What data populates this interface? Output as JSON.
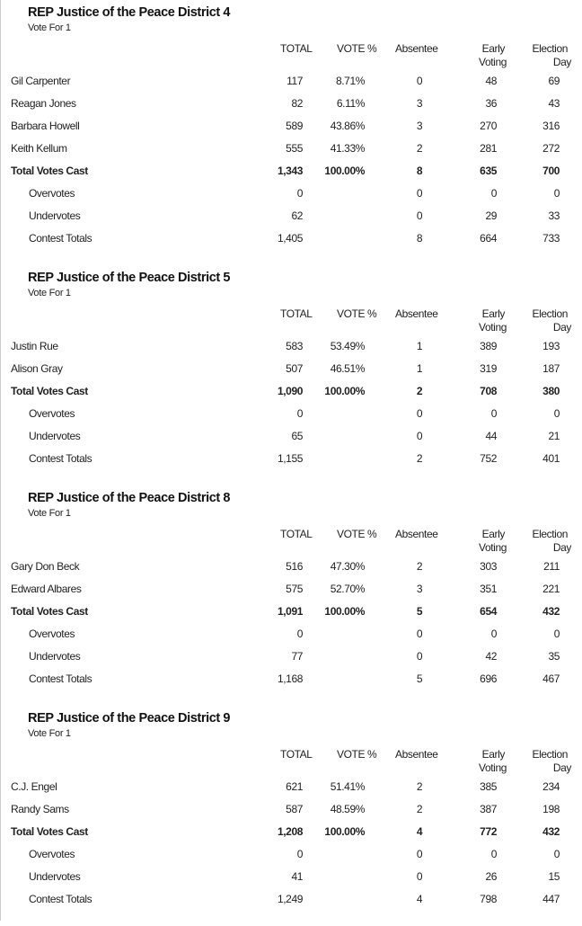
{
  "columns": {
    "total": "TOTAL",
    "vote_pct": "VOTE %",
    "absentee": "Absentee",
    "early_1": "Early",
    "early_2": "Voting",
    "eday_1": "Election",
    "eday_2": "Day"
  },
  "contests": [
    {
      "title": "REP Justice of the Peace District 4",
      "vote_for": "Vote For 1",
      "rows": [
        {
          "name": "Gil Carpenter",
          "total": "117",
          "pct": "8.71%",
          "absentee": "0",
          "early": "48",
          "eday": "69",
          "type": "candidate"
        },
        {
          "name": "Reagan Jones",
          "total": "82",
          "pct": "6.11%",
          "absentee": "3",
          "early": "36",
          "eday": "43",
          "type": "candidate"
        },
        {
          "name": "Barbara Howell",
          "total": "589",
          "pct": "43.86%",
          "absentee": "3",
          "early": "270",
          "eday": "316",
          "type": "candidate"
        },
        {
          "name": "Keith Kellum",
          "total": "555",
          "pct": "41.33%",
          "absentee": "2",
          "early": "281",
          "eday": "272",
          "type": "candidate"
        },
        {
          "name": "Total Votes Cast",
          "total": "1,343",
          "pct": "100.00%",
          "absentee": "8",
          "early": "635",
          "eday": "700",
          "type": "total"
        },
        {
          "name": "Overvotes",
          "total": "0",
          "pct": "",
          "absentee": "0",
          "early": "0",
          "eday": "0",
          "type": "sub"
        },
        {
          "name": "Undervotes",
          "total": "62",
          "pct": "",
          "absentee": "0",
          "early": "29",
          "eday": "33",
          "type": "sub"
        },
        {
          "name": "Contest Totals",
          "total": "1,405",
          "pct": "",
          "absentee": "8",
          "early": "664",
          "eday": "733",
          "type": "sub"
        }
      ]
    },
    {
      "title": "REP Justice of the Peace District 5",
      "vote_for": "Vote For 1",
      "rows": [
        {
          "name": "Justin Rue",
          "total": "583",
          "pct": "53.49%",
          "absentee": "1",
          "early": "389",
          "eday": "193",
          "type": "candidate"
        },
        {
          "name": "Alison Gray",
          "total": "507",
          "pct": "46.51%",
          "absentee": "1",
          "early": "319",
          "eday": "187",
          "type": "candidate"
        },
        {
          "name": "Total Votes Cast",
          "total": "1,090",
          "pct": "100.00%",
          "absentee": "2",
          "early": "708",
          "eday": "380",
          "type": "total"
        },
        {
          "name": "Overvotes",
          "total": "0",
          "pct": "",
          "absentee": "0",
          "early": "0",
          "eday": "0",
          "type": "sub"
        },
        {
          "name": "Undervotes",
          "total": "65",
          "pct": "",
          "absentee": "0",
          "early": "44",
          "eday": "21",
          "type": "sub"
        },
        {
          "name": "Contest Totals",
          "total": "1,155",
          "pct": "",
          "absentee": "2",
          "early": "752",
          "eday": "401",
          "type": "sub"
        }
      ]
    },
    {
      "title": "REP Justice of the Peace District 8",
      "vote_for": "Vote For 1",
      "rows": [
        {
          "name": "Gary Don Beck",
          "total": "516",
          "pct": "47.30%",
          "absentee": "2",
          "early": "303",
          "eday": "211",
          "type": "candidate"
        },
        {
          "name": "Edward Albares",
          "total": "575",
          "pct": "52.70%",
          "absentee": "3",
          "early": "351",
          "eday": "221",
          "type": "candidate"
        },
        {
          "name": "Total Votes Cast",
          "total": "1,091",
          "pct": "100.00%",
          "absentee": "5",
          "early": "654",
          "eday": "432",
          "type": "total"
        },
        {
          "name": "Overvotes",
          "total": "0",
          "pct": "",
          "absentee": "0",
          "early": "0",
          "eday": "0",
          "type": "sub"
        },
        {
          "name": "Undervotes",
          "total": "77",
          "pct": "",
          "absentee": "0",
          "early": "42",
          "eday": "35",
          "type": "sub"
        },
        {
          "name": "Contest Totals",
          "total": "1,168",
          "pct": "",
          "absentee": "5",
          "early": "696",
          "eday": "467",
          "type": "sub"
        }
      ]
    },
    {
      "title": "REP Justice of the Peace District 9",
      "vote_for": "Vote For 1",
      "rows": [
        {
          "name": "C.J. Engel",
          "total": "621",
          "pct": "51.41%",
          "absentee": "2",
          "early": "385",
          "eday": "234",
          "type": "candidate"
        },
        {
          "name": "Randy Sams",
          "total": "587",
          "pct": "48.59%",
          "absentee": "2",
          "early": "387",
          "eday": "198",
          "type": "candidate"
        },
        {
          "name": "Total Votes Cast",
          "total": "1,208",
          "pct": "100.00%",
          "absentee": "4",
          "early": "772",
          "eday": "432",
          "type": "total"
        },
        {
          "name": "Overvotes",
          "total": "0",
          "pct": "",
          "absentee": "0",
          "early": "0",
          "eday": "0",
          "type": "sub"
        },
        {
          "name": "Undervotes",
          "total": "41",
          "pct": "",
          "absentee": "0",
          "early": "26",
          "eday": "15",
          "type": "sub"
        },
        {
          "name": "Contest Totals",
          "total": "1,249",
          "pct": "",
          "absentee": "4",
          "early": "798",
          "eday": "447",
          "type": "sub"
        }
      ]
    }
  ]
}
